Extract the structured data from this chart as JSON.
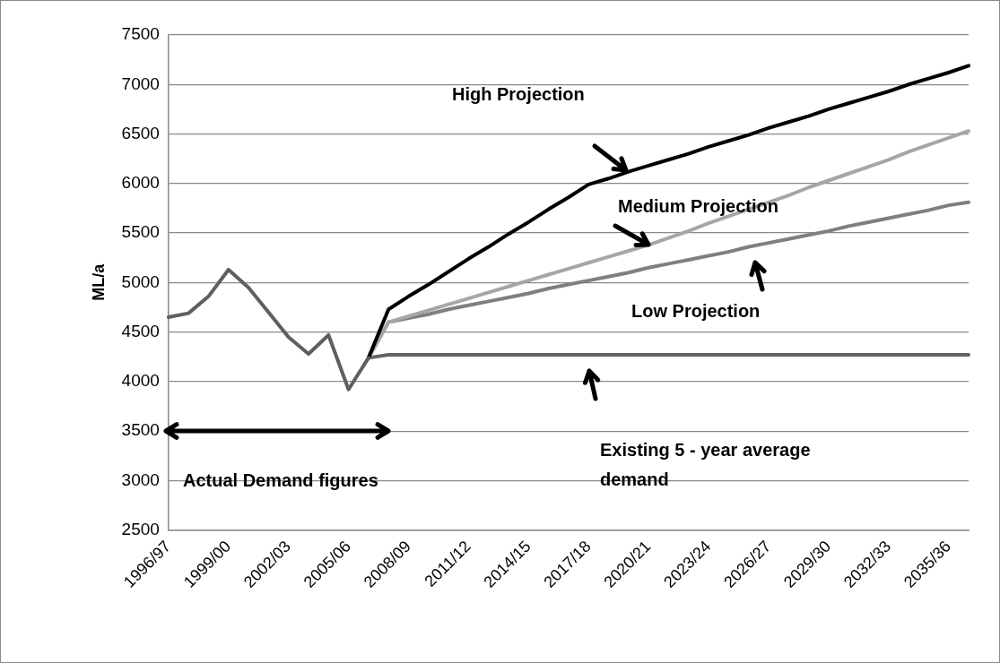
{
  "chart_data": {
    "type": "line",
    "ylabel": "ML/a",
    "categories": [
      "1996/97",
      null,
      null,
      "1999/00",
      null,
      null,
      "2002/03",
      null,
      null,
      "2005/06",
      null,
      null,
      "2008/09",
      null,
      null,
      "2011/12",
      null,
      null,
      "2014/15",
      null,
      null,
      "2017/18",
      null,
      null,
      "2020/21",
      null,
      null,
      "2023/24",
      null,
      null,
      "2026/27",
      null,
      null,
      "2029/30",
      null,
      null,
      "2032/33",
      null,
      null,
      "2035/36",
      null
    ],
    "series": [
      {
        "color": "#5f5f5f",
        "values": [
          4650,
          4690,
          4860,
          5130,
          4950,
          4700,
          4450,
          4280,
          4470,
          3920,
          4240,
          null,
          null,
          null,
          null,
          null,
          null,
          null,
          null,
          null,
          null,
          null,
          null,
          null,
          null,
          null,
          null,
          null,
          null,
          null,
          null,
          null,
          null,
          null,
          null,
          null,
          null,
          null,
          null,
          null,
          null
        ]
      },
      {
        "color": "#000000",
        "values": [
          null,
          null,
          null,
          null,
          null,
          null,
          null,
          null,
          null,
          null,
          4240,
          4730,
          4860,
          4980,
          5110,
          5240,
          5360,
          5490,
          5610,
          5740,
          5860,
          5990,
          6050,
          6120,
          6180,
          6240,
          6300,
          6370,
          6430,
          6490,
          6560,
          6620,
          6680,
          6750,
          6810,
          6870,
          6930,
          7000,
          7060,
          7120,
          7190
        ]
      },
      {
        "color": "#a6a6a6",
        "values": [
          null,
          null,
          null,
          null,
          null,
          null,
          null,
          null,
          null,
          null,
          4240,
          4600,
          4660,
          4720,
          4780,
          4840,
          4900,
          4960,
          5020,
          5080,
          5140,
          5200,
          5260,
          5320,
          5380,
          5450,
          5520,
          5600,
          5670,
          5740,
          5810,
          5880,
          5960,
          6030,
          6100,
          6170,
          6240,
          6320,
          6390,
          6460,
          6530
        ]
      },
      {
        "color": "#7f7f7f",
        "values": [
          null,
          null,
          null,
          null,
          null,
          null,
          null,
          null,
          null,
          null,
          4240,
          4600,
          4640,
          4680,
          4730,
          4770,
          4810,
          4850,
          4890,
          4940,
          4980,
          5020,
          5060,
          5100,
          5150,
          5190,
          5230,
          5270,
          5310,
          5360,
          5400,
          5440,
          5480,
          5520,
          5570,
          5610,
          5650,
          5690,
          5730,
          5780,
          5810
        ]
      },
      {
        "color": "#636363",
        "values": [
          null,
          null,
          null,
          null,
          null,
          null,
          null,
          null,
          null,
          null,
          4240,
          4270,
          4270,
          4270,
          4270,
          4270,
          4270,
          4270,
          4270,
          4270,
          4270,
          4270,
          4270,
          4270,
          4270,
          4270,
          4270,
          4270,
          4270,
          4270,
          4270,
          4270,
          4270,
          4270,
          4270,
          4270,
          4270,
          4270,
          4270,
          4270,
          4270
        ]
      }
    ],
    "ylim": [
      2500,
      7500
    ],
    "yticks": [
      2500,
      3000,
      3500,
      4000,
      4500,
      5000,
      5500,
      6000,
      6500,
      7000,
      7500
    ],
    "grid": "y",
    "legend": false,
    "marker": "none",
    "line_style": "solid",
    "annotations": [
      "High Projection",
      {
        "text": "Medium Projection",
        "x": "2020/21",
        "y": 5380
      },
      "Low  Projection",
      "Existing 5 - year average demand",
      "Actual Demand figures"
    ]
  }
}
